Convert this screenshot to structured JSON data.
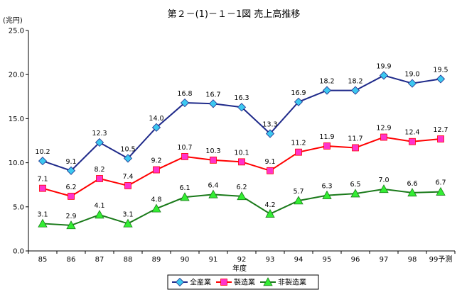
{
  "chart_data": {
    "type": "line",
    "title": "第２－(1)－１－1図 売上高推移",
    "ylabel": "(兆円)",
    "xlabel": "年度",
    "ylim": [
      0,
      25
    ],
    "yticks": [
      "0.0",
      "5.0",
      "10.0",
      "15.0",
      "20.0",
      "25.0"
    ],
    "categories": [
      "85",
      "86",
      "87",
      "88",
      "89",
      "90",
      "91",
      "92",
      "93",
      "94",
      "95",
      "96",
      "97",
      "98",
      "99予測"
    ],
    "grid": false,
    "legend_position": "bottom",
    "series": [
      {
        "name": "全産業",
        "color": "#1f2a8a",
        "marker": "diamond",
        "marker_color": "#3cc8f0",
        "values": [
          10.2,
          9.1,
          12.3,
          10.5,
          14.0,
          16.8,
          16.7,
          16.3,
          13.3,
          16.9,
          18.2,
          18.2,
          19.9,
          19.0,
          19.5
        ],
        "labels": [
          "10.2",
          "9.1",
          "12.3",
          "10.5",
          "14.0",
          "16.8",
          "16.7",
          "16.3",
          "13.3",
          "16.9",
          "18.2",
          "18.2",
          "19.9",
          "19.0",
          "19.5"
        ]
      },
      {
        "name": "製造業",
        "color": "#ff0000",
        "marker": "square",
        "marker_color": "#ff33cc",
        "values": [
          7.1,
          6.2,
          8.2,
          7.4,
          9.2,
          10.7,
          10.3,
          10.1,
          9.1,
          11.2,
          11.9,
          11.7,
          12.9,
          12.4,
          12.7
        ],
        "labels": [
          "7.1",
          "6.2",
          "8.2",
          "7.4",
          "9.2",
          "10.7",
          "10.3",
          "10.1",
          "9.1",
          "11.2",
          "11.9",
          "11.7",
          "12.9",
          "12.4",
          "12.7"
        ]
      },
      {
        "name": "非製造業",
        "color": "#1a7a1a",
        "marker": "triangle",
        "marker_color": "#33ee33",
        "values": [
          3.1,
          2.9,
          4.1,
          3.1,
          4.8,
          6.1,
          6.4,
          6.2,
          4.2,
          5.7,
          6.3,
          6.5,
          7.0,
          6.6,
          6.7
        ],
        "labels": [
          "3.1",
          "2.9",
          "4.1",
          "3.1",
          "4.8",
          "6.1",
          "6.4",
          "6.2",
          "4.2",
          "5.7",
          "6.3",
          "6.5",
          "7.0",
          "6.6",
          "6.7"
        ]
      }
    ]
  }
}
